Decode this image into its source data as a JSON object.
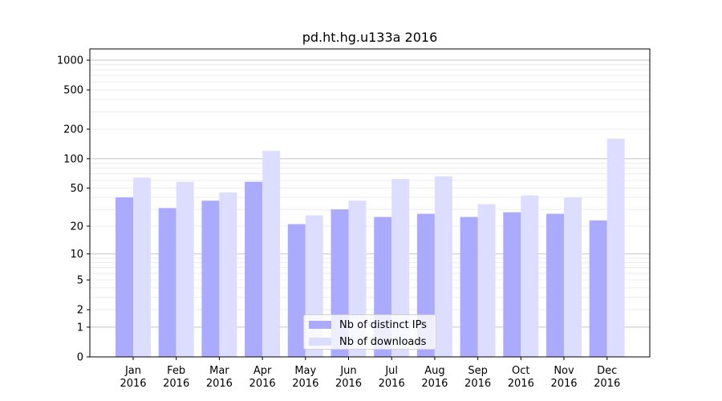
{
  "chart_data": {
    "type": "bar",
    "title": "pd.ht.hg.u133a 2016",
    "xlabel": "",
    "ylabel": "",
    "yscale": "symlog",
    "categories": [
      [
        "Jan",
        "2016"
      ],
      [
        "Feb",
        "2016"
      ],
      [
        "Mar",
        "2016"
      ],
      [
        "Apr",
        "2016"
      ],
      [
        "May",
        "2016"
      ],
      [
        "Jun",
        "2016"
      ],
      [
        "Jul",
        "2016"
      ],
      [
        "Aug",
        "2016"
      ],
      [
        "Sep",
        "2016"
      ],
      [
        "Oct",
        "2016"
      ],
      [
        "Nov",
        "2016"
      ],
      [
        "Dec",
        "2016"
      ]
    ],
    "series": [
      {
        "name": "Nb of distinct IPs",
        "color": "#aaaaff",
        "values": [
          40,
          31,
          37,
          58,
          21,
          30,
          25,
          27,
          25,
          28,
          27,
          23
        ]
      },
      {
        "name": "Nb of downloads",
        "color": "#ddddff",
        "values": [
          64,
          58,
          45,
          120,
          26,
          37,
          62,
          66,
          34,
          42,
          40,
          160
        ]
      }
    ],
    "yticks": [
      0,
      1,
      2,
      5,
      10,
      20,
      50,
      100,
      200,
      500,
      1000
    ],
    "ylim": [
      0,
      1300
    ],
    "grid": true,
    "legend_position": "bottom-center"
  }
}
